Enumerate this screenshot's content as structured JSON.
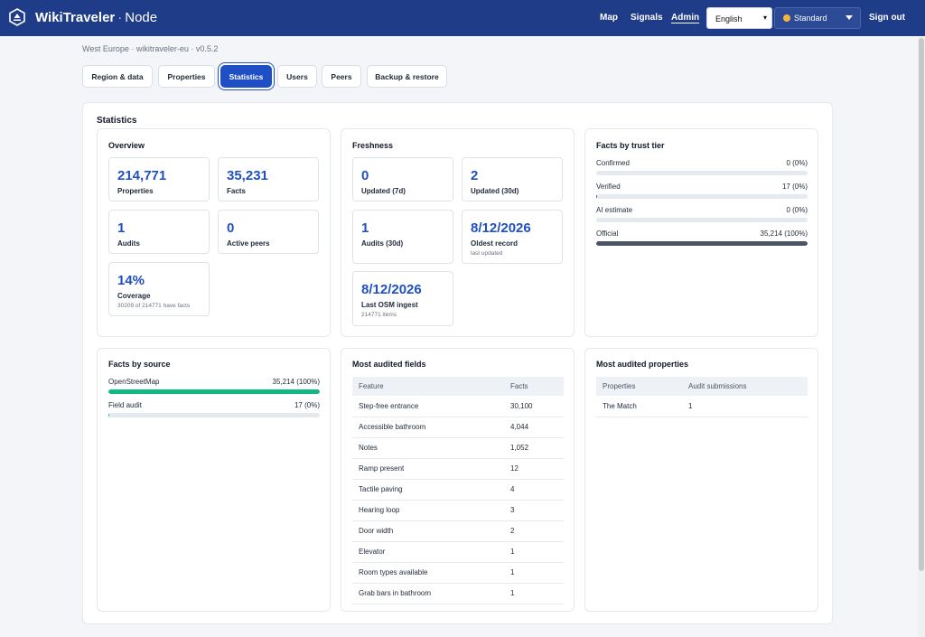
{
  "header": {
    "brand": "WikiTraveler",
    "brand_sub": "Node",
    "nav": {
      "map": "Map",
      "signals": "Signals",
      "admin": "Admin"
    },
    "language": "English",
    "theme": "Standard",
    "signout": "Sign out"
  },
  "breadcrumb": "West Europe · wikitraveler-eu · v0.5.2",
  "tabs": [
    "Region & data",
    "Properties",
    "Statistics",
    "Users",
    "Peers",
    "Backup & restore"
  ],
  "page_title": "Statistics",
  "overview": {
    "title": "Overview",
    "properties": {
      "value": "214,771",
      "label": "Properties"
    },
    "facts": {
      "value": "35,231",
      "label": "Facts"
    },
    "audits": {
      "value": "1",
      "label": "Audits"
    },
    "peers": {
      "value": "0",
      "label": "Active peers"
    },
    "coverage": {
      "value": "14%",
      "label": "Coverage",
      "hint": "30209 of 214771 have facts"
    }
  },
  "freshness": {
    "title": "Freshness",
    "updated7": {
      "value": "0",
      "label": "Updated (7d)"
    },
    "updated30": {
      "value": "2",
      "label": "Updated (30d)"
    },
    "audits30": {
      "value": "1",
      "label": "Audits (30d)"
    },
    "oldest": {
      "value": "8/12/2026",
      "label": "Oldest record",
      "hint": "last updated"
    },
    "osm": {
      "value": "8/12/2026",
      "label": "Last OSM ingest",
      "hint": "214771 items"
    }
  },
  "trust": {
    "title": "Facts by trust tier",
    "rows": [
      {
        "label": "Confirmed",
        "value": "0 (0%)",
        "fraction": 0
      },
      {
        "label": "Verified",
        "value": "17 (0%)",
        "fraction": 0.0005
      },
      {
        "label": "AI estimate",
        "value": "0 (0%)",
        "fraction": 0
      },
      {
        "label": "Official",
        "value": "35,214 (100%)",
        "fraction": 1
      }
    ],
    "color": "#4b5563"
  },
  "source": {
    "title": "Facts by source",
    "rows": [
      {
        "label": "OpenStreetMap",
        "value": "35,214 (100%)",
        "fraction": 1
      },
      {
        "label": "Field audit",
        "value": "17 (0%)",
        "fraction": 0.0005
      }
    ],
    "color": "#10b981"
  },
  "fields": {
    "title": "Most audited fields",
    "headers": [
      "Feature",
      "Facts"
    ],
    "rows": [
      [
        "Step-free entrance",
        "30,100"
      ],
      [
        "Accessible bathroom",
        "4,044"
      ],
      [
        "Notes",
        "1,052"
      ],
      [
        "Ramp present",
        "12"
      ],
      [
        "Tactile paving",
        "4"
      ],
      [
        "Hearing loop",
        "3"
      ],
      [
        "Door width",
        "2"
      ],
      [
        "Elevator",
        "1"
      ],
      [
        "Room types available",
        "1"
      ],
      [
        "Grab bars in bathroom",
        "1"
      ]
    ]
  },
  "properties_audited": {
    "title": "Most audited properties",
    "headers": [
      "Properties",
      "Audit submissions"
    ],
    "rows": [
      [
        "The Match",
        "1"
      ]
    ]
  }
}
